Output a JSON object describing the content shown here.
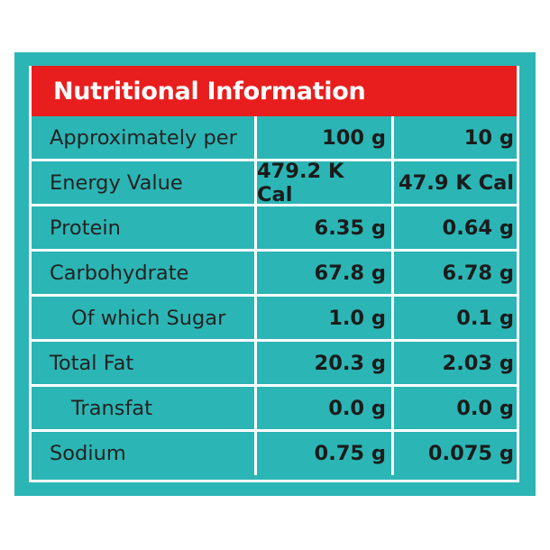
{
  "title": "Nutritional Information",
  "columns": [
    "Approximately per",
    "100 g",
    "10 g"
  ],
  "rows": [
    {
      "label": "Energy Value",
      "per100": "479.2 K Cal",
      "per10": "47.9 K Cal",
      "indent": false
    },
    {
      "label": "Protein",
      "per100": "6.35 g",
      "per10": "0.64 g",
      "indent": false
    },
    {
      "label": "Carbohydrate",
      "per100": "67.8 g",
      "per10": "6.78 g",
      "indent": false
    },
    {
      "label": "Of which Sugar",
      "per100": "1.0 g",
      "per10": "0.1 g",
      "indent": true
    },
    {
      "label": "Total Fat",
      "per100": "20.3 g",
      "per10": "2.03 g",
      "indent": false
    },
    {
      "label": "Transfat",
      "per100": "0.0 g",
      "per10": "0.0 g",
      "indent": true
    },
    {
      "label": "Sodium",
      "per100": "0.75 g",
      "per10": "0.075 g",
      "indent": false
    }
  ],
  "colors": {
    "background": "#2cb5b5",
    "header": "#e81e1e",
    "grid": "#ffffff"
  }
}
